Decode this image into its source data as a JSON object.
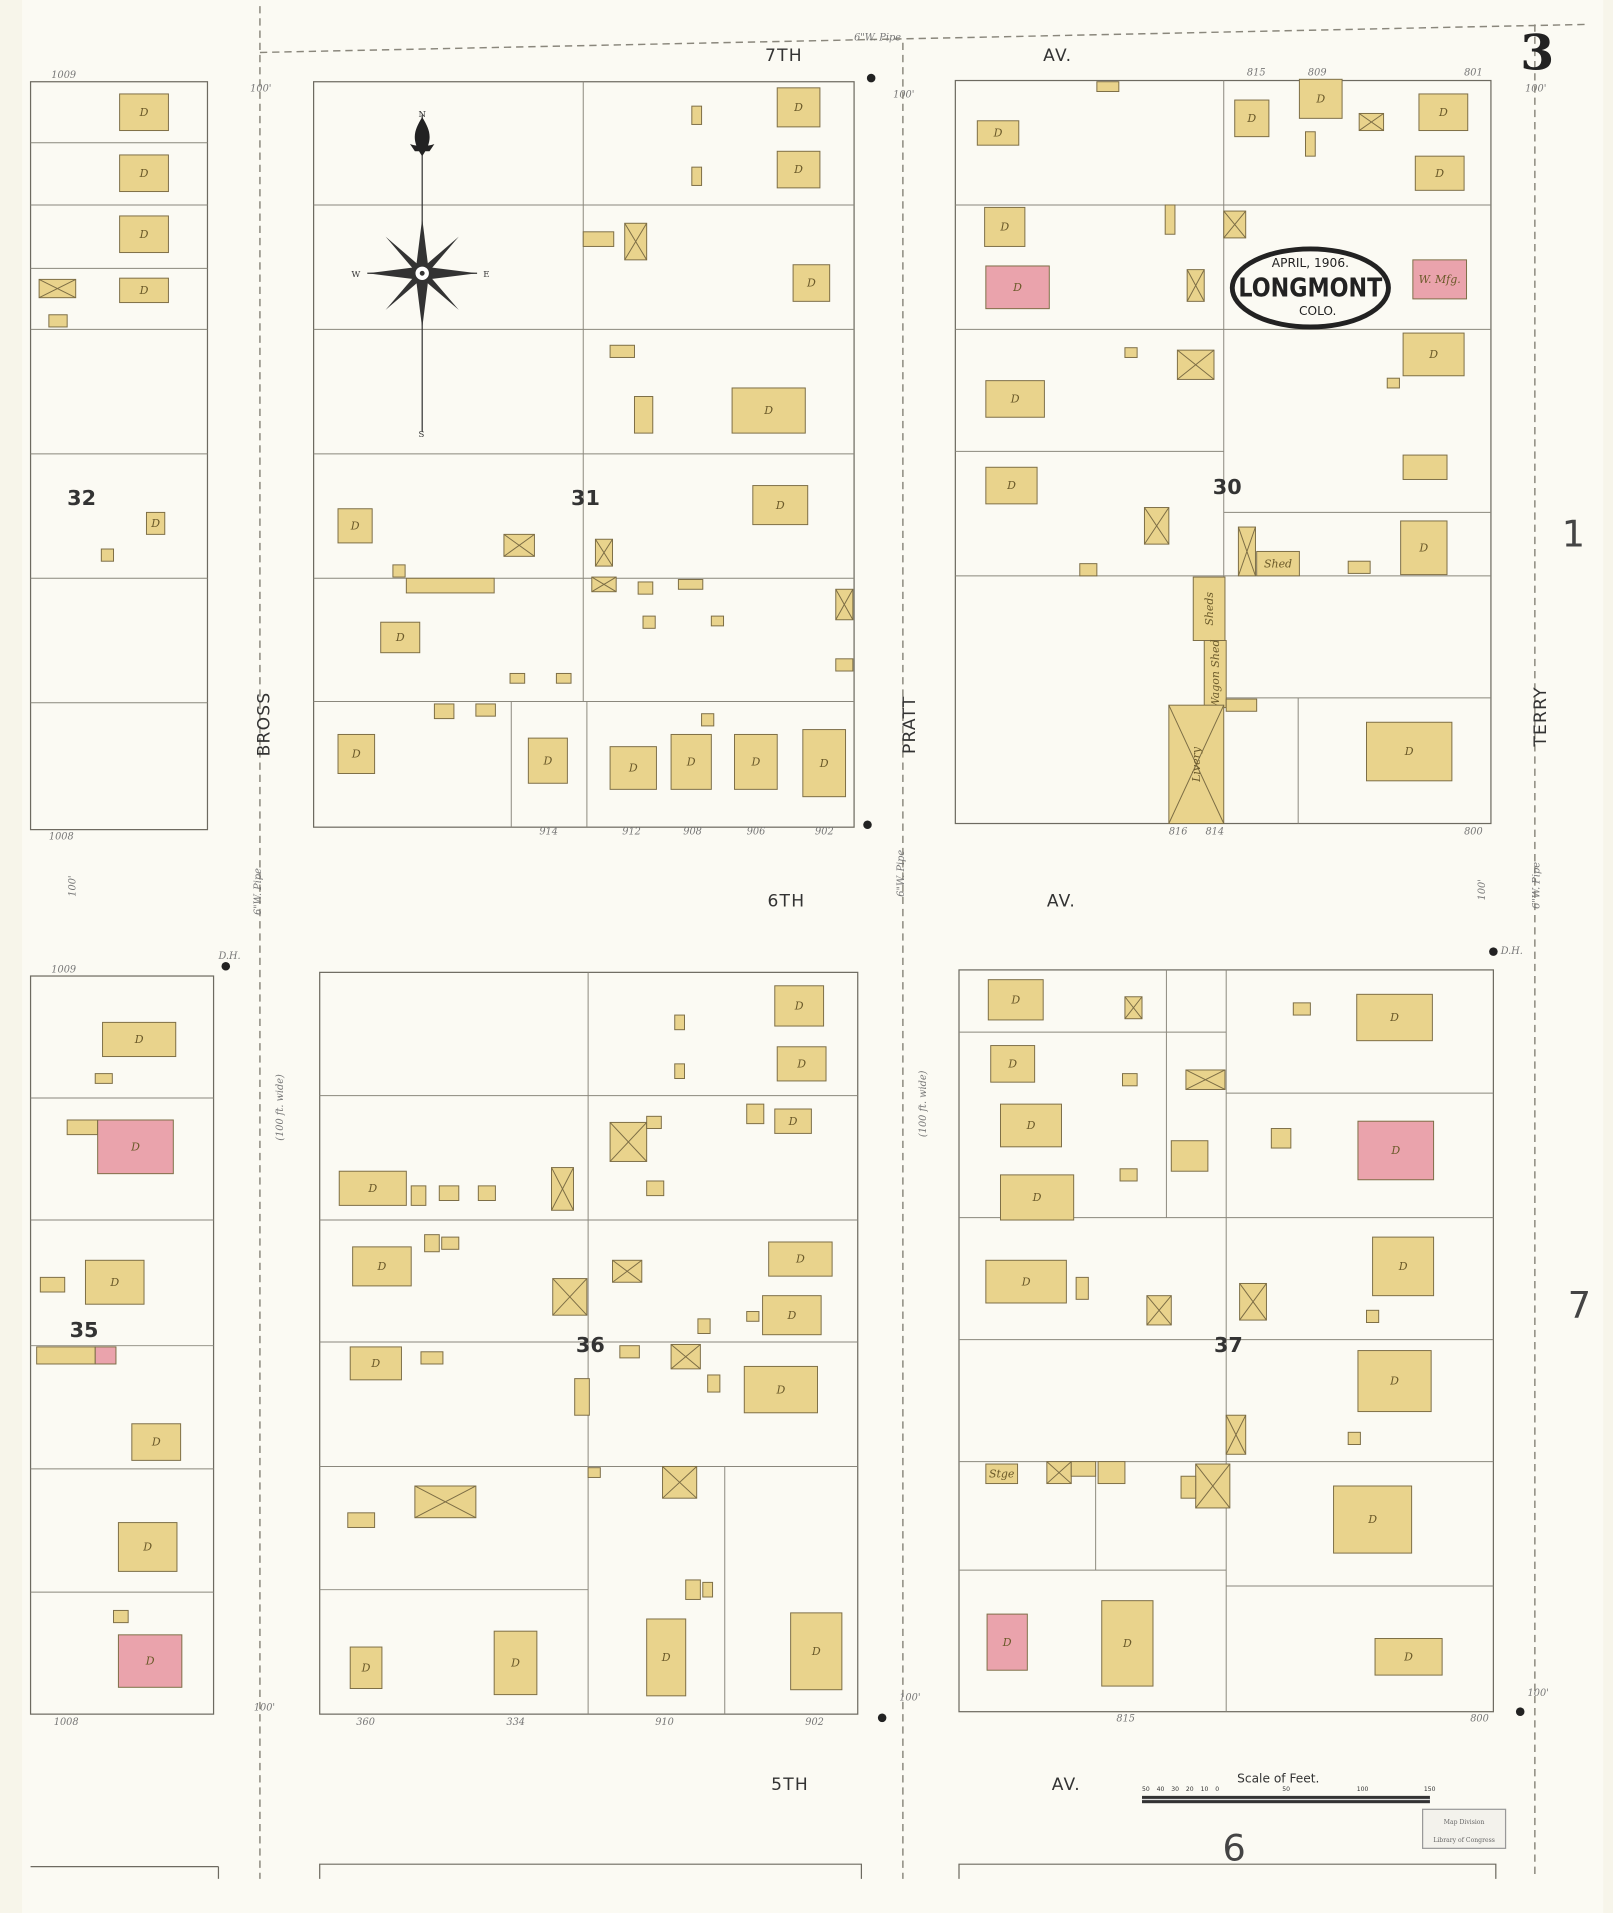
{
  "sheet_number": "3",
  "title": {
    "date": "APRIL, 1906.",
    "city": "LONGMONT",
    "state": "COLO."
  },
  "streets": {
    "top": {
      "name": "7TH",
      "suffix": "AV."
    },
    "middle": {
      "name": "6TH",
      "suffix": "AV."
    },
    "bottom": {
      "name": "5TH",
      "suffix": "AV."
    },
    "left": "BROSS",
    "center": "PRATT",
    "right": "TERRY",
    "width_note": "(100 ft. wide)",
    "pipe": "6\"W. Pipe",
    "frontage": "100'",
    "hydrant": "D.H."
  },
  "blocks": [
    "32",
    "31",
    "30",
    "35",
    "36",
    "37"
  ],
  "adjacent_sheets": {
    "right_top": "1",
    "right_bottom": "7",
    "bottom": "6"
  },
  "addresses": {
    "block31_bottom": [
      "914",
      "912",
      "908",
      "906",
      "902"
    ],
    "block30_bottom": [
      "816",
      "814",
      "800"
    ],
    "block30_top": [
      "815",
      "809",
      "801"
    ],
    "block36_bottom": [
      "360",
      "334",
      "910",
      "902"
    ],
    "block37_bottom": [
      "815",
      "800"
    ],
    "block32": [
      "1009",
      "1008"
    ],
    "block35": [
      "1009",
      "1008"
    ]
  },
  "building_labels": {
    "dwelling": "D",
    "livery": "Livery",
    "wagon_shed": "Wagon Shed",
    "sheds": "Sheds",
    "storage": "Stge",
    "shed": "Shed",
    "mfg": "W. Mfg."
  },
  "scale": {
    "title": "Scale of Feet.",
    "ticks": [
      "50",
      "40",
      "30",
      "20",
      "10",
      "0",
      "50",
      "100",
      "150"
    ]
  },
  "stamp": {
    "line1": "Map Division",
    "line2": "Library of Congress"
  },
  "compass": {
    "n": "N",
    "s": "S",
    "e": "E",
    "w": "W"
  },
  "colors": {
    "frame": "#e9d38c",
    "brick": "#eaa3ac",
    "paper": "#f7f5ea",
    "line": "#6d6a60"
  }
}
